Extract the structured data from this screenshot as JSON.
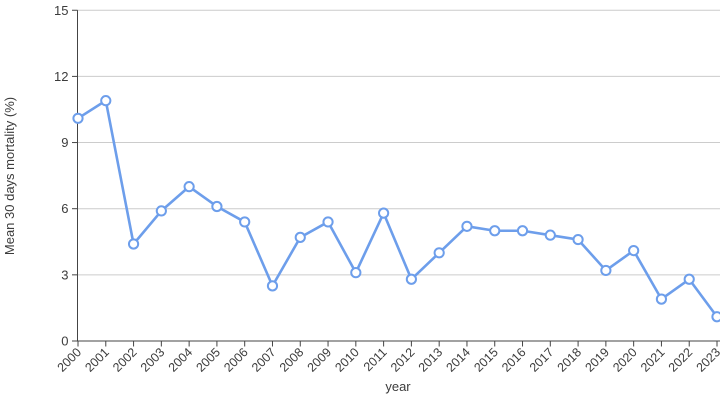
{
  "chart_data": {
    "type": "line",
    "title": "",
    "xlabel": "year",
    "ylabel": "Mean 30 days mortality (%)",
    "categories": [
      "2000",
      "2001",
      "2002",
      "2003",
      "2004",
      "2005",
      "2006",
      "2007",
      "2008",
      "2009",
      "2010",
      "2011",
      "2012",
      "2013",
      "2014",
      "2015",
      "2016",
      "2017",
      "2018",
      "2019",
      "2020",
      "2021",
      "2022",
      "2023"
    ],
    "series": [
      {
        "name": "Mean 30 days mortality (%)",
        "values": [
          10.1,
          10.9,
          4.4,
          5.9,
          7.0,
          6.1,
          5.4,
          2.5,
          4.7,
          5.4,
          3.1,
          5.8,
          2.8,
          4.0,
          5.2,
          5.0,
          5.0,
          4.8,
          4.6,
          3.2,
          4.1,
          1.9,
          2.8,
          1.1
        ]
      }
    ],
    "ylim": [
      0,
      15
    ],
    "yticks": [
      0,
      3,
      6,
      9,
      12,
      15
    ],
    "grid": true,
    "legend_position": "none",
    "marker_style": "open-circle",
    "line_color": "#6d9eeb",
    "marker_fill": "#ffffff",
    "grid_color": "#cccccc",
    "axis_color": "#444444",
    "label_color": "#3c3c3c"
  }
}
